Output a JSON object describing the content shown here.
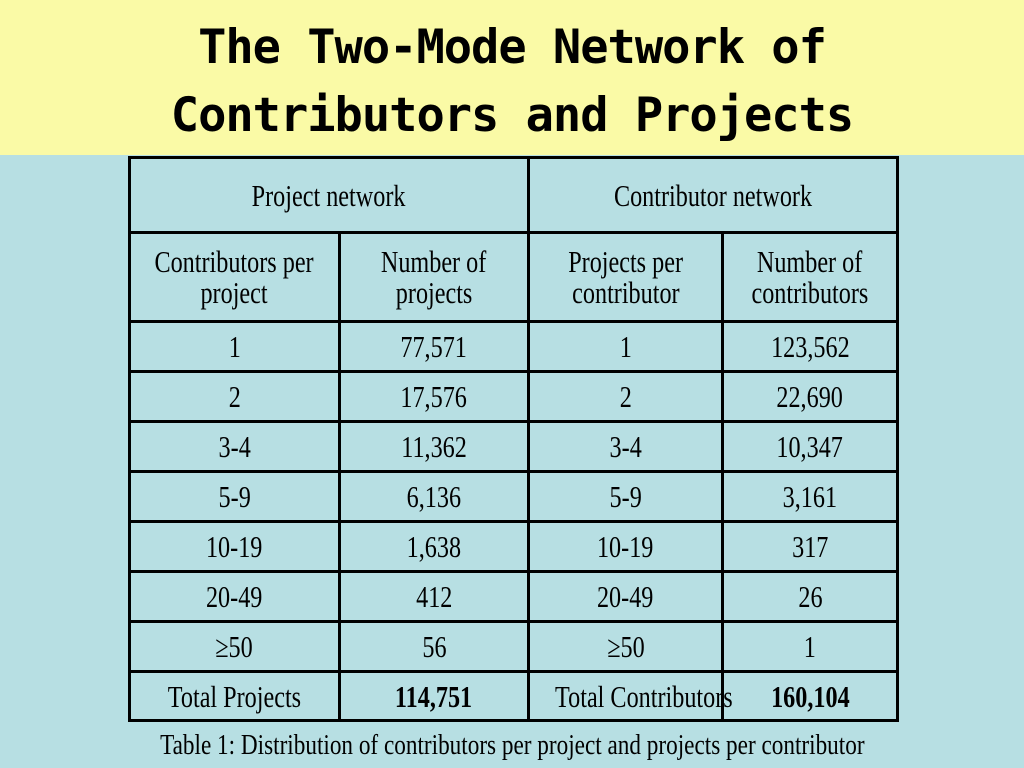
{
  "slide": {
    "title_line1": "The Two-Mode Network of",
    "title_line2": "Contributors and Projects"
  },
  "table": {
    "group_headers": [
      "Project network",
      "Contributor network"
    ],
    "column_headers": [
      [
        "Contributors per",
        "project"
      ],
      [
        "Number of",
        "projects"
      ],
      [
        "Projects per",
        "contributor"
      ],
      [
        "Number of",
        "contributors"
      ]
    ],
    "rows": [
      [
        "1",
        "77,571",
        "1",
        "123,562"
      ],
      [
        "2",
        "17,576",
        "2",
        "22,690"
      ],
      [
        "3-4",
        "11,362",
        "3-4",
        "10,347"
      ],
      [
        "5-9",
        "6,136",
        "5-9",
        "3,161"
      ],
      [
        "10-19",
        "1,638",
        "10-19",
        "317"
      ],
      [
        "20-49",
        "412",
        "20-49",
        "26"
      ],
      [
        "≥50",
        "56",
        "≥50",
        "1"
      ]
    ],
    "totals": [
      "Total Projects",
      "114,751",
      "Total Contributors",
      "160,104"
    ]
  },
  "caption": "Table 1: Distribution of contributors per project and projects per contributor",
  "colors": {
    "title_band": "#fafaa6",
    "background": "#b7dfe3"
  }
}
